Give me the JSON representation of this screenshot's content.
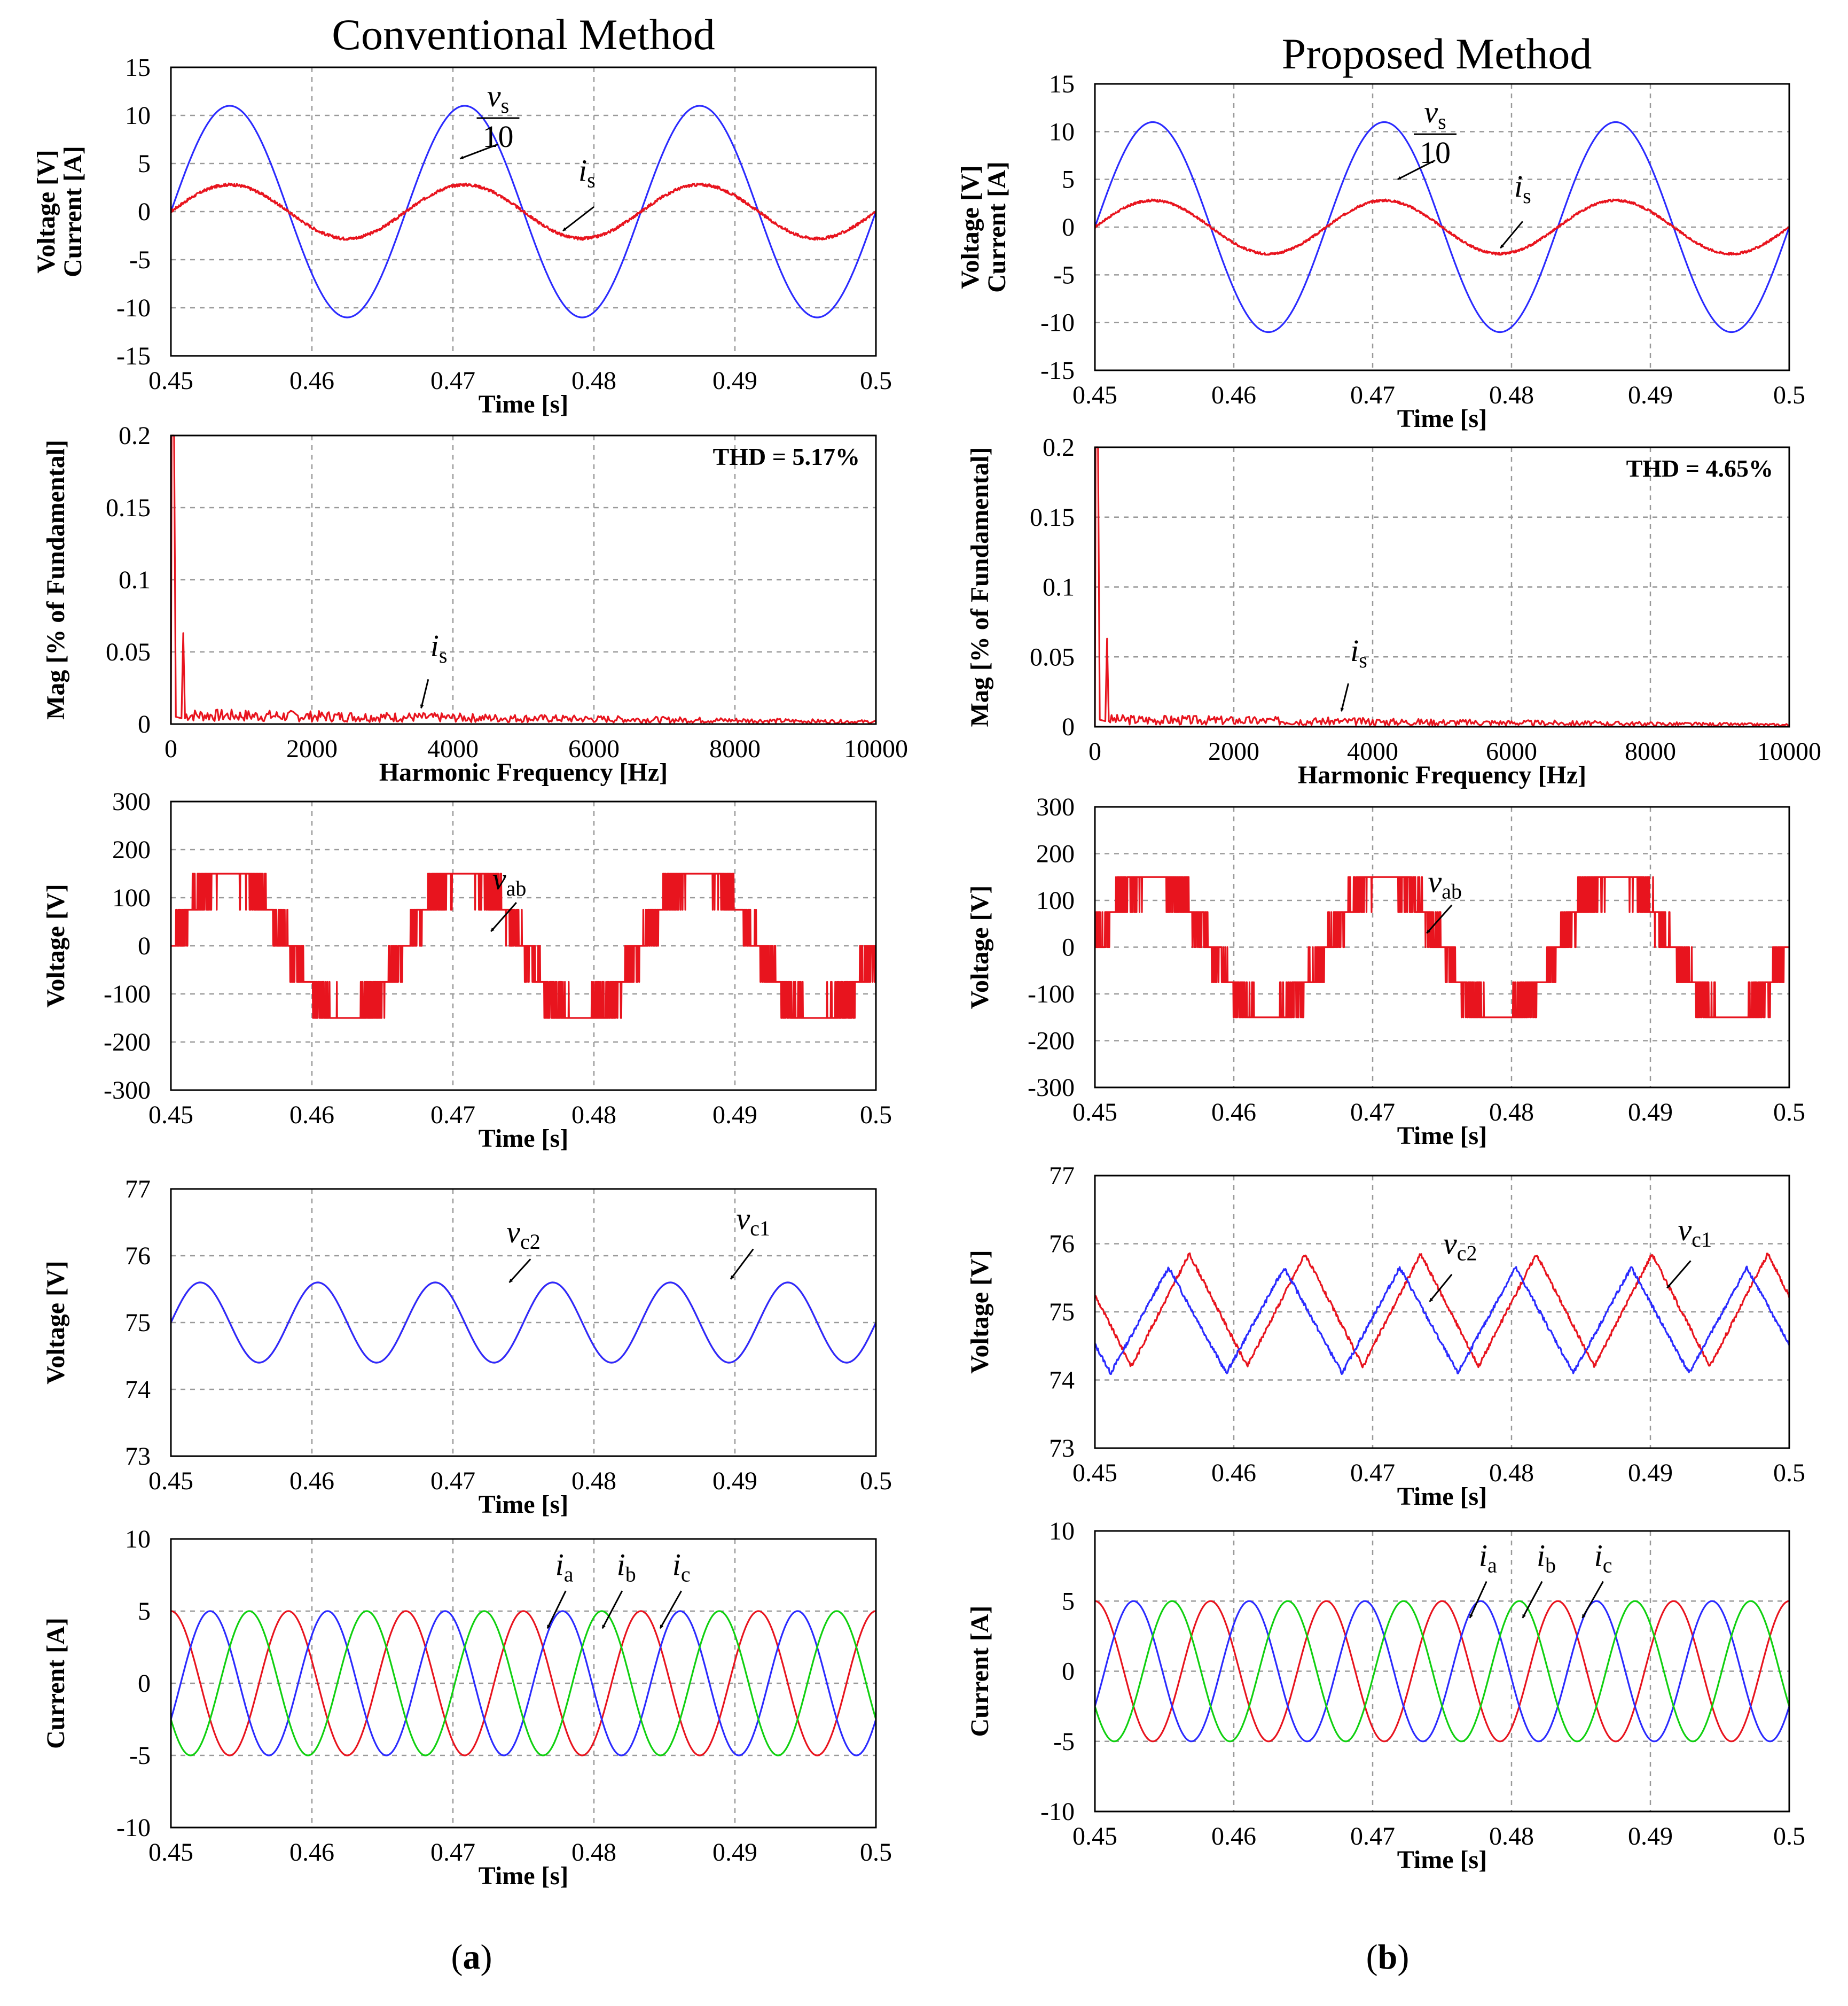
{
  "figure": {
    "left_title": "Conventional Method",
    "right_title": "Proposed Method",
    "left_label": "(a)",
    "right_label": "(b)",
    "left_label_letter": "a",
    "right_label_letter": "b"
  },
  "chart_data": [
    {
      "id": "a1",
      "type": "line",
      "column": "Conventional Method",
      "xlabel": "Time [s]",
      "ylabel": [
        "Voltage [V]",
        "Current [A]"
      ],
      "xlim": [
        0.45,
        0.5
      ],
      "ylim": [
        -15,
        15
      ],
      "xticks": [
        0.45,
        0.46,
        0.47,
        0.48,
        0.49,
        0.5
      ],
      "xtick_labels": [
        "0.45",
        "0.46",
        "0.47",
        "0.48",
        "0.49",
        "0.5"
      ],
      "yticks": [
        -15,
        -10,
        -5,
        0,
        5,
        10,
        15
      ],
      "ytick_labels": [
        "-15",
        "-10",
        "-5",
        "0",
        "5",
        "10",
        "15"
      ],
      "grid": true,
      "series": [
        {
          "name": "vs/10",
          "color": "#2b2bff",
          "kind": "sine",
          "amp": 11,
          "freq": 60,
          "phase_deg": 0,
          "offset": 0
        },
        {
          "name": "is",
          "color": "#e8141e",
          "kind": "sine",
          "amp": 2.8,
          "freq": 60,
          "phase_deg": 0,
          "offset": 0,
          "ripple": 0.15
        }
      ],
      "annotations": [
        {
          "type": "frac",
          "num": "v",
          "num_sub": "s",
          "den": "10",
          "tx": 0.4732,
          "ty": 8.5,
          "ax": 0.4732,
          "ay": 7.0,
          "hx": 0.4705,
          "hy": 5.5
        },
        {
          "type": "label",
          "main": "i",
          "sub": "s",
          "tx": 0.4795,
          "ty": 3.2,
          "ax": 0.48,
          "ay": 0.5,
          "hx": 0.4778,
          "hy": -2.0
        }
      ]
    },
    {
      "id": "a2",
      "type": "line",
      "column": "Conventional Method",
      "xlabel": "Harmonic Frequency [Hz]",
      "ylabel": [
        "Mag [% of Fundamental]"
      ],
      "xlim": [
        0,
        10000
      ],
      "ylim": [
        0,
        0.2
      ],
      "xticks": [
        0,
        2000,
        4000,
        6000,
        8000,
        10000
      ],
      "xtick_labels": [
        "0",
        "2000",
        "4000",
        "6000",
        "8000",
        "10000"
      ],
      "yticks": [
        0,
        0.05,
        0.1,
        0.15,
        0.2
      ],
      "ytick_labels": [
        "0",
        "0.05",
        "0.1",
        "0.15",
        "0.2"
      ],
      "grid": true,
      "text_box": "THD = 5.17%",
      "series": [
        {
          "name": "is",
          "color": "#e8141e",
          "kind": "spectrum",
          "fund": 0.2,
          "h3": 0.063,
          "floor": 0.006,
          "seed": 7
        }
      ],
      "annotations": [
        {
          "type": "label",
          "main": "i",
          "sub": "s",
          "tx": 3800,
          "ty": 0.047,
          "ax": 3650,
          "ay": 0.031,
          "hx": 3550,
          "hy": 0.011
        }
      ]
    },
    {
      "id": "a3",
      "type": "line",
      "column": "Conventional Method",
      "xlabel": "Time [s]",
      "ylabel": [
        "Voltage [V]"
      ],
      "xlim": [
        0.45,
        0.5
      ],
      "ylim": [
        -300,
        300
      ],
      "xticks": [
        0.45,
        0.46,
        0.47,
        0.48,
        0.49,
        0.5
      ],
      "xtick_labels": [
        "0.45",
        "0.46",
        "0.47",
        "0.48",
        "0.49",
        "0.5"
      ],
      "yticks": [
        -300,
        -200,
        -100,
        0,
        100,
        200,
        300
      ],
      "ytick_labels": [
        "-300",
        "-200",
        "-100",
        "0",
        "100",
        "200",
        "300"
      ],
      "grid": true,
      "series": [
        {
          "name": "vab",
          "color": "#e8141e",
          "kind": "multilevel",
          "step": 75,
          "freq": 60,
          "phase_deg": 0,
          "seed": 11
        }
      ],
      "annotations": [
        {
          "type": "label",
          "main": "v",
          "sub": "ab",
          "tx": 0.474,
          "ty": 118,
          "ax": 0.4745,
          "ay": 90,
          "hx": 0.4727,
          "hy": 30
        }
      ]
    },
    {
      "id": "a4",
      "type": "line",
      "column": "Conventional Method",
      "xlabel": "Time [s]",
      "ylabel": [
        "Voltage [V]"
      ],
      "xlim": [
        0.45,
        0.5
      ],
      "ylim": [
        73,
        77
      ],
      "xticks": [
        0.45,
        0.46,
        0.47,
        0.48,
        0.49,
        0.5
      ],
      "xtick_labels": [
        "0.45",
        "0.46",
        "0.47",
        "0.48",
        "0.49",
        "0.5"
      ],
      "yticks": [
        73,
        74,
        75,
        76,
        77
      ],
      "ytick_labels": [
        "73",
        "74",
        "75",
        "76",
        "77"
      ],
      "grid": true,
      "series": [
        {
          "name": "vc1",
          "color": "#e8141e",
          "kind": "sine",
          "amp": 0.6,
          "freq": 120,
          "phase_deg": 0,
          "offset": 75
        },
        {
          "name": "vc2",
          "color": "#2b2bff",
          "kind": "sine",
          "amp": 0.6,
          "freq": 120,
          "phase_deg": 0,
          "offset": 75
        }
      ],
      "annotations": [
        {
          "type": "label",
          "main": "v",
          "sub": "c2",
          "tx": 0.475,
          "ty": 76.2,
          "ax": 0.4755,
          "ay": 75.95,
          "hx": 0.474,
          "hy": 75.6
        },
        {
          "type": "label",
          "main": "v",
          "sub": "c1",
          "tx": 0.4913,
          "ty": 76.4,
          "ax": 0.4913,
          "ay": 76.1,
          "hx": 0.4897,
          "hy": 75.65
        }
      ]
    },
    {
      "id": "a5",
      "type": "line",
      "column": "Conventional Method",
      "xlabel": "Time [s]",
      "ylabel": [
        "Current [A]"
      ],
      "xlim": [
        0.45,
        0.5
      ],
      "ylim": [
        -10,
        10
      ],
      "xticks": [
        0.45,
        0.46,
        0.47,
        0.48,
        0.49,
        0.5
      ],
      "xtick_labels": [
        "0.45",
        "0.46",
        "0.47",
        "0.48",
        "0.49",
        "0.5"
      ],
      "yticks": [
        -10,
        -5,
        0,
        5,
        10
      ],
      "ytick_labels": [
        "-10",
        "-5",
        "0",
        "5",
        "10"
      ],
      "grid": true,
      "series": [
        {
          "name": "ia",
          "color": "#e8141e",
          "kind": "sine",
          "amp": 5,
          "freq": 120,
          "phase_deg": 90,
          "offset": 0
        },
        {
          "name": "ib",
          "color": "#2b2bff",
          "kind": "sine",
          "amp": 5,
          "freq": 120,
          "phase_deg": -30,
          "offset": 0
        },
        {
          "name": "ic",
          "color": "#10d010",
          "kind": "sine",
          "amp": 5,
          "freq": 120,
          "phase_deg": 210,
          "offset": 0
        }
      ],
      "annotations": [
        {
          "type": "label",
          "main": "i",
          "sub": "a",
          "tx": 0.4779,
          "ty": 7.5,
          "ax": 0.478,
          "ay": 6.4,
          "hx": 0.4767,
          "hy": 3.8
        },
        {
          "type": "label",
          "main": "i",
          "sub": "b",
          "tx": 0.4823,
          "ty": 7.5,
          "ax": 0.482,
          "ay": 6.4,
          "hx": 0.4806,
          "hy": 3.8
        },
        {
          "type": "label",
          "main": "i",
          "sub": "c",
          "tx": 0.4862,
          "ty": 7.5,
          "ax": 0.4862,
          "ay": 6.4,
          "hx": 0.4847,
          "hy": 3.8
        }
      ]
    },
    {
      "id": "b1",
      "type": "line",
      "column": "Proposed Method",
      "xlabel": "Time [s]",
      "ylabel": [
        "Voltage [V]",
        "Current [A]"
      ],
      "xlim": [
        0.45,
        0.5
      ],
      "ylim": [
        -15,
        15
      ],
      "xticks": [
        0.45,
        0.46,
        0.47,
        0.48,
        0.49,
        0.5
      ],
      "xtick_labels": [
        "0.45",
        "0.46",
        "0.47",
        "0.48",
        "0.49",
        "0.5"
      ],
      "yticks": [
        -15,
        -10,
        -5,
        0,
        5,
        10,
        15
      ],
      "ytick_labels": [
        "-15",
        "-10",
        "-5",
        "0",
        "5",
        "10",
        "15"
      ],
      "grid": true,
      "series": [
        {
          "name": "vs/10",
          "color": "#2b2bff",
          "kind": "sine",
          "amp": 11,
          "freq": 60,
          "phase_deg": 0,
          "offset": 0
        },
        {
          "name": "is",
          "color": "#e8141e",
          "kind": "sine",
          "amp": 2.8,
          "freq": 60,
          "phase_deg": 0,
          "offset": 0,
          "ripple": 0.12
        }
      ],
      "annotations": [
        {
          "type": "frac",
          "num": "v",
          "num_sub": "s",
          "den": "10",
          "tx": 0.4745,
          "ty": 8.5,
          "ax": 0.4745,
          "ay": 7.0,
          "hx": 0.4718,
          "hy": 5.0
        },
        {
          "type": "label",
          "main": "i",
          "sub": "s",
          "tx": 0.4808,
          "ty": 3.2,
          "ax": 0.4808,
          "ay": 0.6,
          "hx": 0.4792,
          "hy": -2.2
        }
      ]
    },
    {
      "id": "b2",
      "type": "line",
      "column": "Proposed Method",
      "xlabel": "Harmonic Frequency [Hz]",
      "ylabel": [
        "Mag [% of Fundamental]"
      ],
      "xlim": [
        0,
        10000
      ],
      "ylim": [
        0,
        0.2
      ],
      "xticks": [
        0,
        2000,
        4000,
        6000,
        8000,
        10000
      ],
      "xtick_labels": [
        "0",
        "2000",
        "4000",
        "6000",
        "8000",
        "10000"
      ],
      "yticks": [
        0,
        0.05,
        0.1,
        0.15,
        0.2
      ],
      "ytick_labels": [
        "0",
        "0.05",
        "0.1",
        "0.15",
        "0.2"
      ],
      "grid": true,
      "text_box": "THD = 4.65%",
      "series": [
        {
          "name": "is",
          "color": "#e8141e",
          "kind": "spectrum",
          "fund": 0.2,
          "h3": 0.063,
          "floor": 0.005,
          "seed": 3
        }
      ],
      "annotations": [
        {
          "type": "label",
          "main": "i",
          "sub": "s",
          "tx": 3800,
          "ty": 0.047,
          "ax": 3650,
          "ay": 0.031,
          "hx": 3550,
          "hy": 0.011
        }
      ]
    },
    {
      "id": "b3",
      "type": "line",
      "column": "Proposed Method",
      "xlabel": "Time [s]",
      "ylabel": [
        "Voltage [V]"
      ],
      "xlim": [
        0.45,
        0.5
      ],
      "ylim": [
        -300,
        300
      ],
      "xticks": [
        0.45,
        0.46,
        0.47,
        0.48,
        0.49,
        0.5
      ],
      "xtick_labels": [
        "0.45",
        "0.46",
        "0.47",
        "0.48",
        "0.49",
        "0.5"
      ],
      "yticks": [
        -300,
        -200,
        -100,
        0,
        100,
        200,
        300
      ],
      "ytick_labels": [
        "-300",
        "-200",
        "-100",
        "0",
        "100",
        "200",
        "300"
      ],
      "grid": true,
      "series": [
        {
          "name": "vab",
          "color": "#e8141e",
          "kind": "multilevel",
          "step": 75,
          "freq": 60,
          "phase_deg": 0,
          "seed": 5
        }
      ],
      "annotations": [
        {
          "type": "label",
          "main": "v",
          "sub": "ab",
          "tx": 0.4752,
          "ty": 118,
          "ax": 0.4757,
          "ay": 90,
          "hx": 0.4739,
          "hy": 30
        }
      ]
    },
    {
      "id": "b4",
      "type": "line",
      "column": "Proposed Method",
      "xlabel": "Time [s]",
      "ylabel": [
        "Voltage [V]"
      ],
      "xlim": [
        0.45,
        0.5
      ],
      "ylim": [
        73,
        77
      ],
      "xticks": [
        0.45,
        0.46,
        0.47,
        0.48,
        0.49,
        0.5
      ],
      "xtick_labels": [
        "0.45",
        "0.46",
        "0.47",
        "0.48",
        "0.49",
        "0.5"
      ],
      "yticks": [
        73,
        74,
        75,
        76,
        77
      ],
      "ytick_labels": [
        "73",
        "74",
        "75",
        "76",
        "77"
      ],
      "grid": true,
      "series": [
        {
          "name": "vc1",
          "color": "#e8141e",
          "kind": "triangle",
          "min": 74.2,
          "max": 75.85,
          "period": 0.00833,
          "peak_at": 0.4568,
          "seed": 9
        },
        {
          "name": "vc2",
          "color": "#2b2bff",
          "kind": "triangle",
          "min": 74.1,
          "max": 75.65,
          "period": 0.00833,
          "peak_at": 0.4553,
          "seed": 13
        }
      ],
      "annotations": [
        {
          "type": "label",
          "main": "v",
          "sub": "c2",
          "tx": 0.4763,
          "ty": 75.85,
          "ax": 0.4757,
          "ay": 75.55,
          "hx": 0.4741,
          "hy": 75.15
        },
        {
          "type": "label",
          "main": "v",
          "sub": "c1",
          "tx": 0.4932,
          "ty": 76.05,
          "ax": 0.4929,
          "ay": 75.75,
          "hx": 0.4912,
          "hy": 75.35
        }
      ]
    },
    {
      "id": "b5",
      "type": "line",
      "column": "Proposed Method",
      "xlabel": "Time [s]",
      "ylabel": [
        "Current [A]"
      ],
      "xlim": [
        0.45,
        0.5
      ],
      "ylim": [
        -10,
        10
      ],
      "xticks": [
        0.45,
        0.46,
        0.47,
        0.48,
        0.49,
        0.5
      ],
      "xtick_labels": [
        "0.45",
        "0.46",
        "0.47",
        "0.48",
        "0.49",
        "0.5"
      ],
      "yticks": [
        -10,
        -5,
        0,
        5,
        10
      ],
      "ytick_labels": [
        "-10",
        "-5",
        "0",
        "5",
        "10"
      ],
      "grid": true,
      "series": [
        {
          "name": "ia",
          "color": "#e8141e",
          "kind": "sine",
          "amp": 5,
          "freq": 120,
          "phase_deg": 90,
          "offset": 0
        },
        {
          "name": "ib",
          "color": "#2b2bff",
          "kind": "sine",
          "amp": 5,
          "freq": 120,
          "phase_deg": -30,
          "offset": 0
        },
        {
          "name": "ic",
          "color": "#10d010",
          "kind": "sine",
          "amp": 5,
          "freq": 120,
          "phase_deg": 210,
          "offset": 0
        }
      ],
      "annotations": [
        {
          "type": "label",
          "main": "i",
          "sub": "a",
          "tx": 0.4783,
          "ty": 7.5,
          "ax": 0.4782,
          "ay": 6.4,
          "hx": 0.477,
          "hy": 3.8
        },
        {
          "type": "label",
          "main": "i",
          "sub": "b",
          "tx": 0.4825,
          "ty": 7.5,
          "ax": 0.4822,
          "ay": 6.4,
          "hx": 0.4808,
          "hy": 3.8
        },
        {
          "type": "label",
          "main": "i",
          "sub": "c",
          "tx": 0.4866,
          "ty": 7.5,
          "ax": 0.4866,
          "ay": 6.4,
          "hx": 0.4851,
          "hy": 3.8
        }
      ]
    }
  ]
}
